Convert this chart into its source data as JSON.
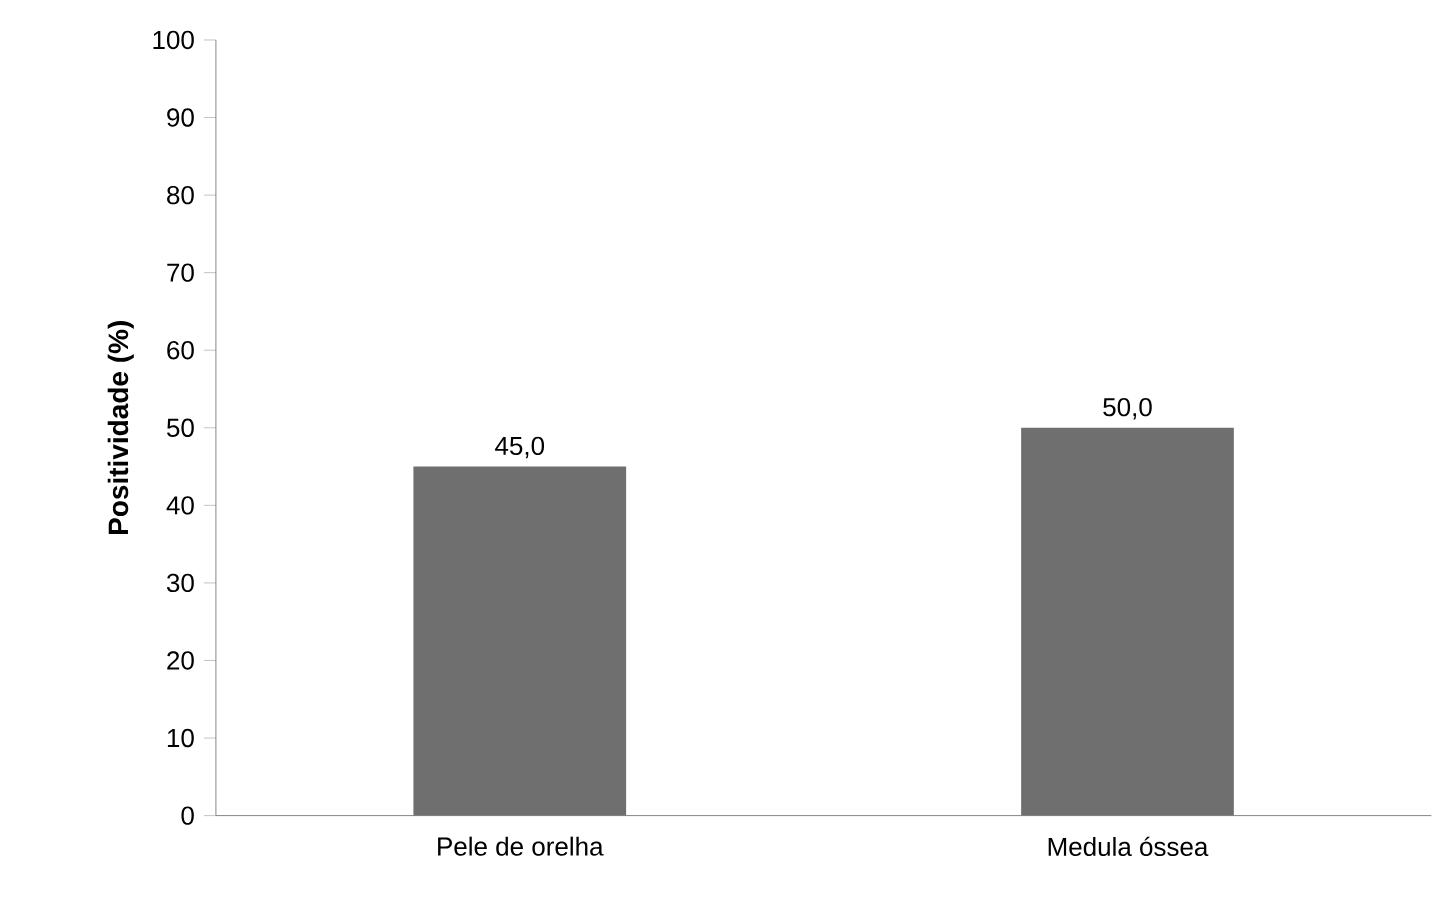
{
  "chart_data": {
    "type": "bar",
    "ylabel": "Positividade (%)",
    "categories": [
      "Pele de orelha",
      "Medula óssea"
    ],
    "values": [
      45.0,
      50.0
    ],
    "value_labels": [
      "45,0",
      "50,0"
    ],
    "color": "#6f6f6f",
    "ylim": [
      0,
      100
    ],
    "yticks": [
      0,
      10,
      20,
      30,
      40,
      50,
      60,
      70,
      80,
      90,
      100
    ]
  }
}
